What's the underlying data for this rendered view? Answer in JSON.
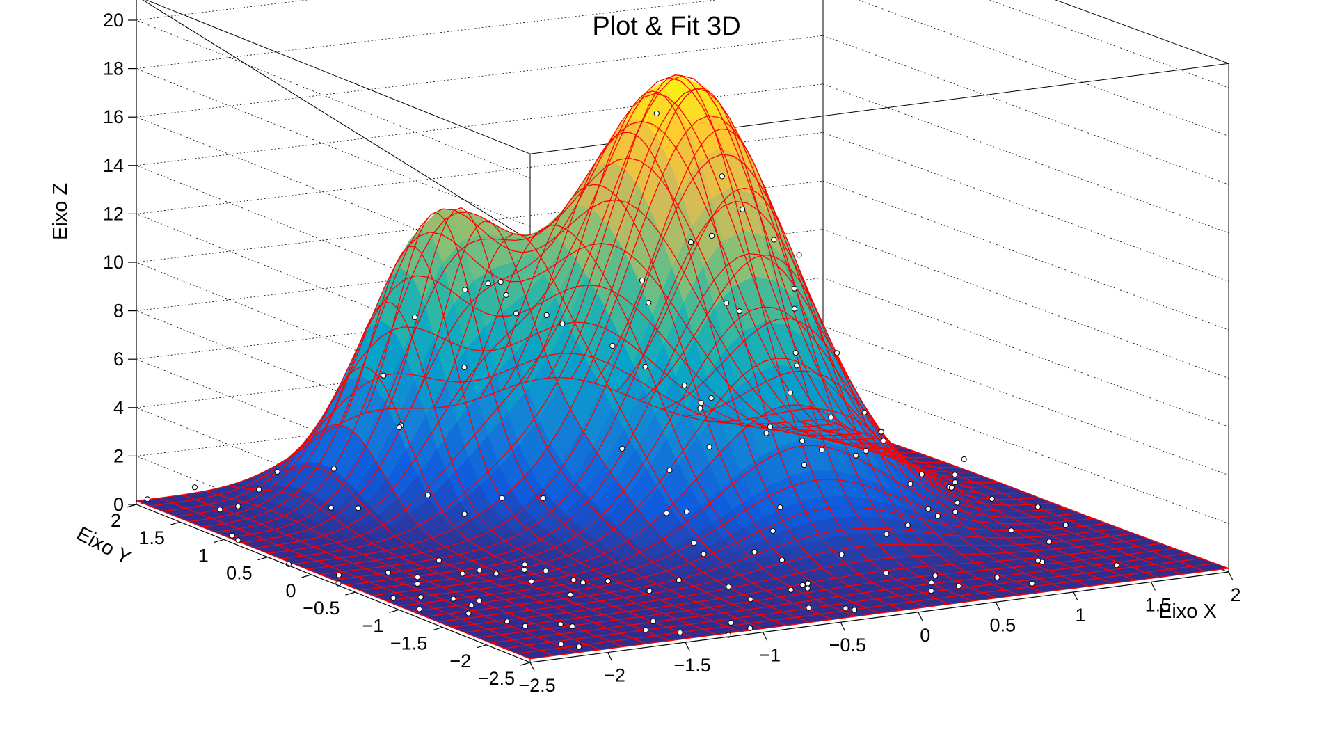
{
  "chart_data": {
    "type": "surface",
    "title": "Plot & Fit 3D",
    "xlabel": "Eixo X",
    "ylabel": "Eixo Y",
    "zlabel": "Eixo Z",
    "xlim": [
      -2.5,
      2
    ],
    "ylim": [
      -2.5,
      2
    ],
    "zlim": [
      0,
      21
    ],
    "x_ticks": [
      "−2.5",
      "−2",
      "−1.5",
      "−1",
      "−0.5",
      "0",
      "0.5",
      "1",
      "1.5",
      "2"
    ],
    "y_ticks": [
      "−2.5",
      "−2",
      "−1.5",
      "−1",
      "−0.5",
      "0",
      "0.5",
      "1",
      "1.5",
      "2"
    ],
    "z_ticks": [
      "0",
      "2",
      "4",
      "6",
      "8",
      "10",
      "12",
      "14",
      "16",
      "18",
      "20"
    ],
    "grid": true,
    "surface_palette": [
      "#352a87",
      "#0f5cdd",
      "#1481d6",
      "#06a4ca",
      "#2eb7a4",
      "#87bf77",
      "#d1bb59",
      "#fec832",
      "#f9fb0e"
    ],
    "mesh_color": "#ff0000",
    "peaks": [
      {
        "x": 0.2,
        "y": 0.5,
        "height": 17.6,
        "sigma_x": 0.55,
        "sigma_y": 0.8
      },
      {
        "x": -1.0,
        "y": 1.2,
        "height": 10.8,
        "sigma_x": 0.4,
        "sigma_y": 0.45
      }
    ],
    "data_points_shown": true
  }
}
